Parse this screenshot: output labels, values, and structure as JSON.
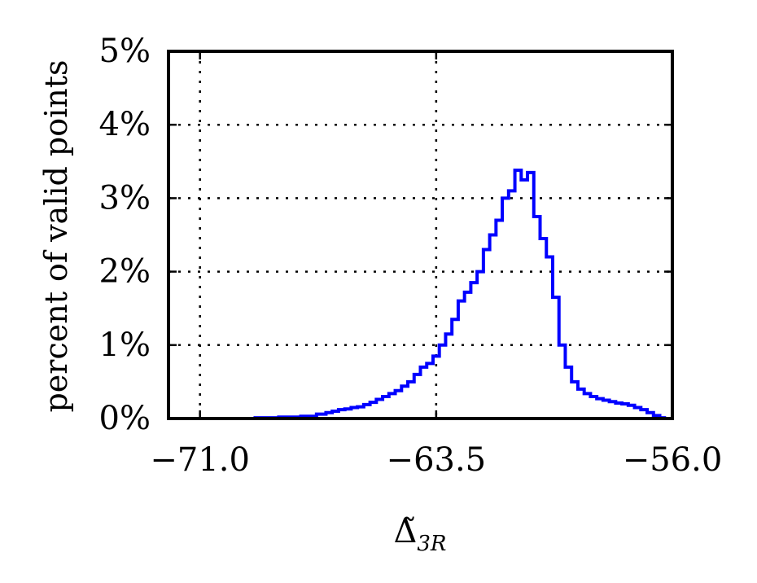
{
  "chart_data": {
    "type": "line",
    "drawstyle": "steps",
    "xlabel": "Δ̃",
    "xlabel_subscript": "3R",
    "ylabel": "percent of valid points",
    "xlim": [
      -72.0,
      -56.0
    ],
    "ylim": [
      0,
      5
    ],
    "xticks": [
      -71.0,
      -63.5,
      -56.0
    ],
    "xtick_labels": [
      "−71.0",
      "−63.5",
      "−56.0"
    ],
    "yticks": [
      0,
      1,
      2,
      3,
      4,
      5
    ],
    "ytick_labels": [
      "0%",
      "1%",
      "2%",
      "3%",
      "4%",
      "5%"
    ],
    "grid": true,
    "series": [
      {
        "color": "#0000ff",
        "x": [
          -69.3,
          -68.5,
          -67.8,
          -67.3,
          -67.0,
          -66.8,
          -66.6,
          -66.4,
          -66.2,
          -66.0,
          -65.8,
          -65.6,
          -65.4,
          -65.2,
          -65.0,
          -64.8,
          -64.6,
          -64.4,
          -64.2,
          -64.0,
          -63.8,
          -63.6,
          -63.4,
          -63.2,
          -63.0,
          -62.8,
          -62.6,
          -62.4,
          -62.2,
          -62.0,
          -61.8,
          -61.6,
          -61.4,
          -61.2,
          -61.0,
          -60.8,
          -60.6,
          -60.4,
          -60.2,
          -60.0,
          -59.8,
          -59.6,
          -59.4,
          -59.2,
          -59.0,
          -58.8,
          -58.6,
          -58.4,
          -58.2,
          -58.0,
          -57.8,
          -57.6,
          -57.4,
          -57.2,
          -57.0,
          -56.8,
          -56.6,
          -56.4
        ],
        "y": [
          0.01,
          0.02,
          0.03,
          0.06,
          0.08,
          0.1,
          0.12,
          0.13,
          0.15,
          0.16,
          0.19,
          0.22,
          0.26,
          0.3,
          0.34,
          0.38,
          0.44,
          0.5,
          0.6,
          0.7,
          0.75,
          0.85,
          1.0,
          1.15,
          1.35,
          1.6,
          1.72,
          1.85,
          2.0,
          2.3,
          2.5,
          2.7,
          3.0,
          3.1,
          3.38,
          3.25,
          3.35,
          2.75,
          2.45,
          2.2,
          1.65,
          1.0,
          0.7,
          0.5,
          0.4,
          0.34,
          0.3,
          0.27,
          0.25,
          0.23,
          0.21,
          0.2,
          0.18,
          0.15,
          0.12,
          0.08,
          0.04,
          0.01
        ]
      }
    ]
  }
}
